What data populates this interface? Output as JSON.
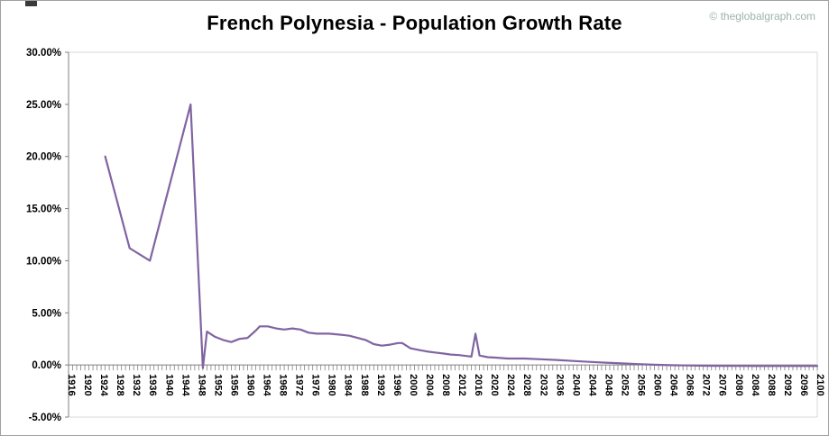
{
  "page": {
    "watermark": "© theglobalgraph.com"
  },
  "chart_data": {
    "type": "line",
    "title": "French Polynesia - Population Growth Rate",
    "xlabel": "",
    "ylabel": "",
    "grid": false,
    "legend": "none",
    "line_color": "#8064A2",
    "axis_color": "#808080",
    "border_color": "#d9d9d9",
    "ylim": [
      -5,
      30
    ],
    "x_range": [
      1916,
      2100
    ],
    "y_tick_values": [
      30,
      25,
      20,
      15,
      10,
      5,
      0,
      -5
    ],
    "y_tick_labels": [
      "30.00%",
      "25.00%",
      "20.00%",
      "15.00%",
      "10.00%",
      "5.00%",
      "0.00%",
      "-5.00%"
    ],
    "x_tick_years": [
      1916,
      1920,
      1924,
      1928,
      1932,
      1936,
      1940,
      1944,
      1948,
      1952,
      1956,
      1960,
      1964,
      1968,
      1972,
      1976,
      1980,
      1984,
      1988,
      1992,
      1996,
      2000,
      2004,
      2008,
      2012,
      2016,
      2020,
      2024,
      2028,
      2032,
      2036,
      2040,
      2044,
      2048,
      2052,
      2056,
      2060,
      2064,
      2068,
      2072,
      2076,
      2080,
      2084,
      2088,
      2092,
      2096,
      2100
    ],
    "series": [
      {
        "name": "Population Growth Rate",
        "points": [
          [
            1925,
            20.0
          ],
          [
            1931,
            11.2
          ],
          [
            1936,
            10.0
          ],
          [
            1946,
            25.0
          ],
          [
            1949,
            -0.3
          ],
          [
            1950,
            3.2
          ],
          [
            1952,
            2.7
          ],
          [
            1954,
            2.4
          ],
          [
            1956,
            2.2
          ],
          [
            1958,
            2.5
          ],
          [
            1960,
            2.6
          ],
          [
            1962,
            3.3
          ],
          [
            1963,
            3.7
          ],
          [
            1965,
            3.7
          ],
          [
            1967,
            3.5
          ],
          [
            1969,
            3.4
          ],
          [
            1971,
            3.5
          ],
          [
            1973,
            3.4
          ],
          [
            1975,
            3.1
          ],
          [
            1977,
            3.0
          ],
          [
            1980,
            3.0
          ],
          [
            1983,
            2.9
          ],
          [
            1985,
            2.8
          ],
          [
            1987,
            2.6
          ],
          [
            1989,
            2.4
          ],
          [
            1991,
            2.0
          ],
          [
            1993,
            1.85
          ],
          [
            1995,
            1.95
          ],
          [
            1997,
            2.1
          ],
          [
            1998,
            2.1
          ],
          [
            2000,
            1.6
          ],
          [
            2002,
            1.45
          ],
          [
            2004,
            1.3
          ],
          [
            2006,
            1.2
          ],
          [
            2008,
            1.1
          ],
          [
            2010,
            1.0
          ],
          [
            2012,
            0.95
          ],
          [
            2014,
            0.85
          ],
          [
            2015,
            0.8
          ],
          [
            2016,
            3.0
          ],
          [
            2017,
            0.9
          ],
          [
            2019,
            0.75
          ],
          [
            2021,
            0.7
          ],
          [
            2024,
            0.62
          ],
          [
            2028,
            0.62
          ],
          [
            2032,
            0.55
          ],
          [
            2036,
            0.48
          ],
          [
            2040,
            0.38
          ],
          [
            2044,
            0.3
          ],
          [
            2048,
            0.22
          ],
          [
            2052,
            0.15
          ],
          [
            2056,
            0.08
          ],
          [
            2060,
            0.02
          ],
          [
            2064,
            -0.02
          ],
          [
            2068,
            -0.05
          ],
          [
            2072,
            -0.07
          ],
          [
            2076,
            -0.08
          ],
          [
            2080,
            -0.09
          ],
          [
            2084,
            -0.1
          ],
          [
            2088,
            -0.1
          ],
          [
            2092,
            -0.1
          ],
          [
            2096,
            -0.1
          ],
          [
            2100,
            -0.1
          ]
        ]
      }
    ]
  }
}
